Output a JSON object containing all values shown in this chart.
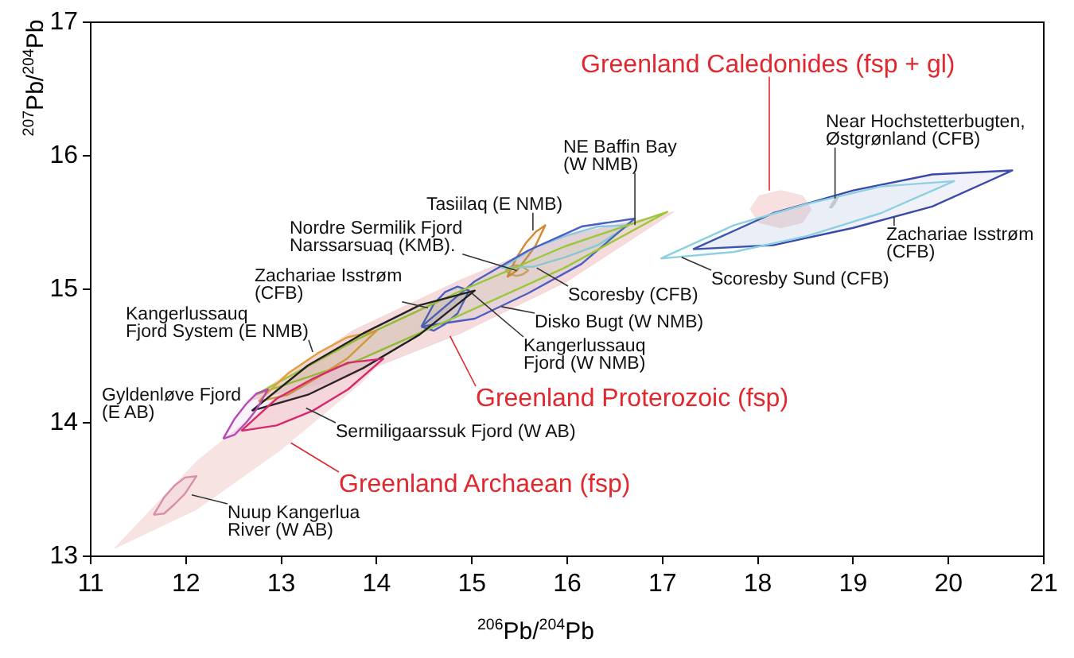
{
  "chart_data": {
    "type": "line",
    "xlabel": "$^{206}$Pb/$^{204}$Pb",
    "ylabel": "$^{207}$Pb/$^{204}$Pb",
    "xlim": [
      11,
      21
    ],
    "ylim": [
      13,
      17
    ],
    "xticks": [
      11,
      12,
      13,
      14,
      15,
      16,
      17,
      18,
      19,
      20,
      21
    ],
    "yticks": [
      13,
      14,
      15,
      16,
      17
    ],
    "grid": false,
    "legend": false,
    "marker": "none",
    "line_style": "solid",
    "series": [
      {
        "type": "area",
        "color": "#f6dcdc",
        "x": [
          11.25,
          12.11,
          12.98,
          13.84,
          14.7,
          13.84,
          12.98,
          12.11,
          11.25
        ],
        "values": [
          13.06,
          13.71,
          14.21,
          14.66,
          14.95,
          14.3,
          13.79,
          13.35,
          13.06
        ]
      },
      {
        "type": "area",
        "color": "#f3d2d2",
        "x": [
          12.63,
          13.75,
          14.88,
          16.0,
          17.12,
          16.0,
          14.88,
          13.75,
          12.63
        ],
        "values": [
          14.16,
          14.69,
          15.07,
          15.4,
          15.58,
          15.06,
          14.67,
          14.35,
          14.16
        ]
      },
      {
        "type": "area",
        "color": "#f6d8d8",
        "x": [
          17.92,
          18.01,
          18.24,
          18.47,
          18.56,
          18.47,
          18.24,
          18.01,
          17.92
        ],
        "values": [
          15.6,
          15.7,
          15.74,
          15.7,
          15.6,
          15.5,
          15.46,
          15.5,
          15.6
        ]
      },
      {
        "type": "area",
        "color": "#d98fa8",
        "x": [
          11.66,
          11.77,
          11.88,
          11.99,
          12.11,
          11.99,
          11.88,
          11.77,
          11.66
        ],
        "values": [
          13.31,
          13.44,
          13.53,
          13.59,
          13.6,
          13.47,
          13.39,
          13.32,
          13.31
        ]
      },
      {
        "type": "area",
        "color": "#b84ab8",
        "x": [
          12.39,
          12.51,
          12.63,
          12.74,
          12.86,
          12.74,
          12.63,
          12.51,
          12.39
        ],
        "values": [
          13.88,
          14.03,
          14.14,
          14.22,
          14.25,
          14.1,
          14.0,
          13.91,
          13.88
        ]
      },
      {
        "type": "area",
        "color": "#d6286e",
        "x": [
          12.58,
          12.95,
          13.33,
          13.7,
          14.07,
          13.7,
          13.33,
          12.95,
          12.58
        ],
        "values": [
          13.94,
          14.18,
          14.33,
          14.45,
          14.48,
          14.25,
          14.09,
          13.98,
          13.94
        ]
      },
      {
        "type": "area",
        "color": "#222222",
        "x": [
          12.69,
          13.28,
          13.86,
          14.45,
          15.03,
          14.45,
          13.86,
          13.28,
          12.69
        ],
        "values": [
          14.09,
          14.43,
          14.67,
          14.88,
          14.99,
          14.66,
          14.41,
          14.21,
          14.09
        ]
      },
      {
        "type": "area",
        "color": "#e0a040",
        "x": [
          12.76,
          13.07,
          13.38,
          13.69,
          14.0,
          13.69,
          13.38,
          13.07,
          12.76
        ],
        "values": [
          14.16,
          14.37,
          14.52,
          14.64,
          14.69,
          14.48,
          14.34,
          14.21,
          14.16
        ]
      },
      {
        "type": "area",
        "color": "#9ac83a",
        "x": [
          12.73,
          13.81,
          14.89,
          15.97,
          17.05,
          15.97,
          14.89,
          13.81,
          12.73
        ],
        "values": [
          14.21,
          14.63,
          14.99,
          15.32,
          15.58,
          15.16,
          14.81,
          14.47,
          14.21
        ]
      },
      {
        "type": "area",
        "color": "#4a5fc1",
        "x": [
          14.47,
          14.6,
          14.72,
          14.85,
          14.97,
          14.85,
          14.72,
          14.6,
          14.47
        ],
        "values": [
          14.72,
          14.89,
          14.98,
          15.02,
          14.99,
          14.82,
          14.74,
          14.69,
          14.72
        ]
      },
      {
        "type": "area",
        "color": "#4a5fc1",
        "x": [
          14.47,
          15.03,
          15.59,
          16.15,
          16.71,
          16.15,
          15.59,
          15.03,
          14.47
        ],
        "values": [
          14.72,
          15.06,
          15.29,
          15.47,
          15.53,
          15.19,
          14.97,
          14.78,
          14.72
        ]
      },
      {
        "type": "area",
        "color": "#8ecfe0",
        "x": [
          15.31,
          15.65,
          15.98,
          16.32,
          16.65,
          16.32,
          15.98,
          15.65,
          15.31
        ],
        "values": [
          15.16,
          15.31,
          15.4,
          15.47,
          15.48,
          15.33,
          15.24,
          15.17,
          15.16
        ]
      },
      {
        "type": "area",
        "color": "#d08a30",
        "x": [
          15.37,
          15.47,
          15.57,
          15.67,
          15.77,
          15.67,
          15.57,
          15.47,
          15.37
        ],
        "values": [
          15.09,
          15.24,
          15.35,
          15.43,
          15.48,
          15.33,
          15.23,
          15.14,
          15.09
        ]
      },
      {
        "type": "area",
        "color": "#d9a060",
        "x": [
          15.35,
          15.41,
          15.47,
          15.53,
          15.59,
          15.53,
          15.47,
          15.41,
          15.35
        ],
        "values": [
          15.14,
          15.17,
          15.18,
          15.17,
          15.14,
          15.11,
          15.1,
          15.11,
          15.14
        ]
      },
      {
        "type": "area",
        "color": "#8ecfe0",
        "x": [
          16.98,
          17.75,
          18.52,
          19.29,
          20.06,
          19.29,
          18.52,
          17.75,
          16.98
        ],
        "values": [
          15.23,
          15.48,
          15.64,
          15.77,
          15.81,
          15.57,
          15.4,
          15.28,
          15.23
        ]
      },
      {
        "type": "area",
        "color": "#3a4aa8",
        "x": [
          17.32,
          18.16,
          19.0,
          19.83,
          20.67,
          19.83,
          19.0,
          18.16,
          17.32
        ],
        "values": [
          15.3,
          15.57,
          15.74,
          15.86,
          15.89,
          15.62,
          15.46,
          15.33,
          15.3
        ]
      },
      {
        "type": "area",
        "color": "#c8c8c8",
        "x": [
          18.75,
          18.78,
          18.81,
          18.84,
          18.87,
          18.84,
          18.81,
          18.78,
          18.75
        ],
        "values": [
          15.61,
          15.65,
          15.68,
          15.71,
          15.72,
          15.68,
          15.64,
          15.61,
          15.61
        ]
      }
    ],
    "annotations": [
      {
        "text": "Near Hochstetterbugten,\nØstgrønland (CFB)",
        "x": 18.81,
        "y": 15.68
      },
      {
        "text": "Zachariae Isstrøm\n(CFB)",
        "x": 19.43,
        "y": 15.54
      },
      {
        "text": "Scoresby Sund (CFB)",
        "x": 17.2,
        "y": 15.24
      },
      {
        "text": "NE Baffin Bay\n(W NMB)",
        "x": 16.71,
        "y": 15.48
      },
      {
        "text": "Tasiilaq (E NMB)",
        "x": 15.64,
        "y": 15.44
      },
      {
        "text": "Nordre Sermilik Fjord\nNarssarsuaq (KMB).",
        "x": 15.47,
        "y": 15.14
      },
      {
        "text": "Scoresby (CFB)",
        "x": 15.68,
        "y": 15.16
      },
      {
        "text": "Disko Bugt (W NMB)",
        "x": 15.31,
        "y": 14.87
      },
      {
        "text": "Kangerlussauq\nFjord (W NMB)",
        "x": 15.0,
        "y": 14.97
      },
      {
        "text": "Zachariae Isstrøm\n(CFB)",
        "x": 14.54,
        "y": 14.86
      },
      {
        "text": "Kangerlussauq\nFjord System (E NMB)",
        "x": 13.33,
        "y": 14.53
      },
      {
        "text": "Gyldenløve Fjord\n(E AB)",
        "x": 12.49,
        "y": 14.07
      },
      {
        "text": "Sermiligaarssuk Fjord (W AB)",
        "x": 13.26,
        "y": 14.11
      },
      {
        "text": "Nuup Kangerlua\nRiver (W AB)",
        "x": 12.06,
        "y": 13.46
      },
      {
        "text": "Greenland Caledonides (fsp + gl)",
        "x": 18.12,
        "y": 15.74
      },
      {
        "text": "Greenland Proterozoic (fsp)",
        "x": 14.77,
        "y": 14.65
      },
      {
        "text": "Greenland Archaean (fsp)",
        "x": 13.1,
        "y": 13.85
      }
    ]
  }
}
